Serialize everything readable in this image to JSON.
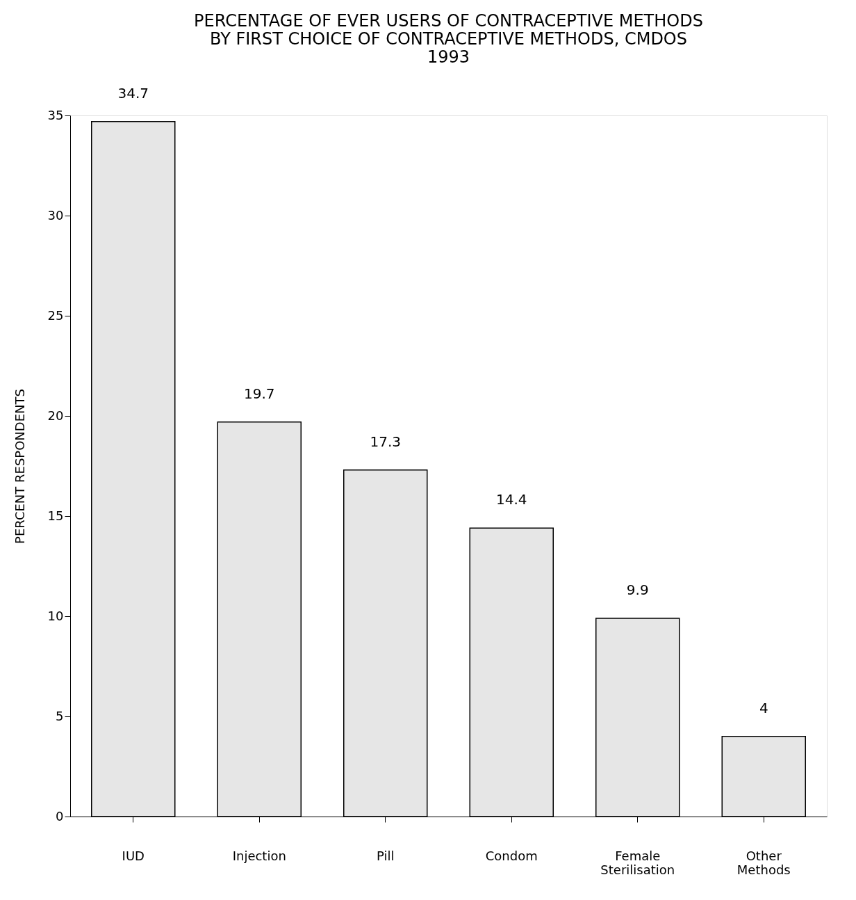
{
  "chart_data": {
    "type": "bar",
    "title": "PERCENTAGE OF EVER USERS OF CONTRACEPTIVE METHODS\nBY FIRST CHOICE OF CONTRACEPTIVE METHODS, CMDOS\n1993",
    "ylabel": "PERCENT RESPONDENTS",
    "categories": [
      "IUD",
      "Injection",
      "Pill",
      "Condom",
      "Female Sterilisation",
      "Other Methods"
    ],
    "values": [
      34.7,
      19.7,
      17.3,
      14.4,
      9.9,
      4
    ],
    "color": "#e6e6e6",
    "ylim": [
      0,
      35
    ],
    "yticks": [
      0,
      5,
      10,
      15,
      20,
      25,
      30,
      35
    ],
    "data_labels": true,
    "grid": false
  }
}
